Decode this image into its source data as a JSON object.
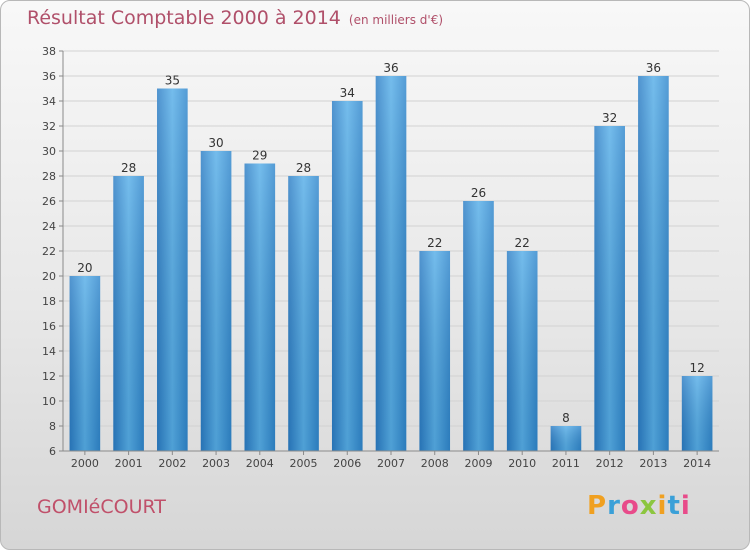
{
  "title": "Résultat Comptable 2000 à 2014",
  "unit": "(en milliers d'€)",
  "place": "GOMIéCOURT",
  "logo": {
    "letters": [
      "P",
      "r",
      "o",
      "x",
      "i",
      "t",
      "i"
    ],
    "colors": [
      "#f0a020",
      "#3aa0d8",
      "#e84b8a",
      "#8cc63f",
      "#f0a020",
      "#3aa0d8",
      "#e84b8a"
    ]
  },
  "colors": {
    "bar": "#3d95d8",
    "title": "#b0506a"
  },
  "chart_data": {
    "type": "bar",
    "categories": [
      "2000",
      "2001",
      "2002",
      "2003",
      "2004",
      "2005",
      "2006",
      "2007",
      "2008",
      "2009",
      "2010",
      "2011",
      "2012",
      "2013",
      "2014"
    ],
    "values": [
      20,
      28,
      35,
      30,
      29,
      28,
      34,
      36,
      22,
      26,
      22,
      8,
      32,
      36,
      12
    ],
    "ylim": [
      6,
      38
    ],
    "yticks": [
      6,
      8,
      10,
      12,
      14,
      16,
      18,
      20,
      22,
      24,
      26,
      28,
      30,
      32,
      34,
      36,
      38
    ],
    "grid": true,
    "xlabel": "",
    "ylabel": ""
  }
}
